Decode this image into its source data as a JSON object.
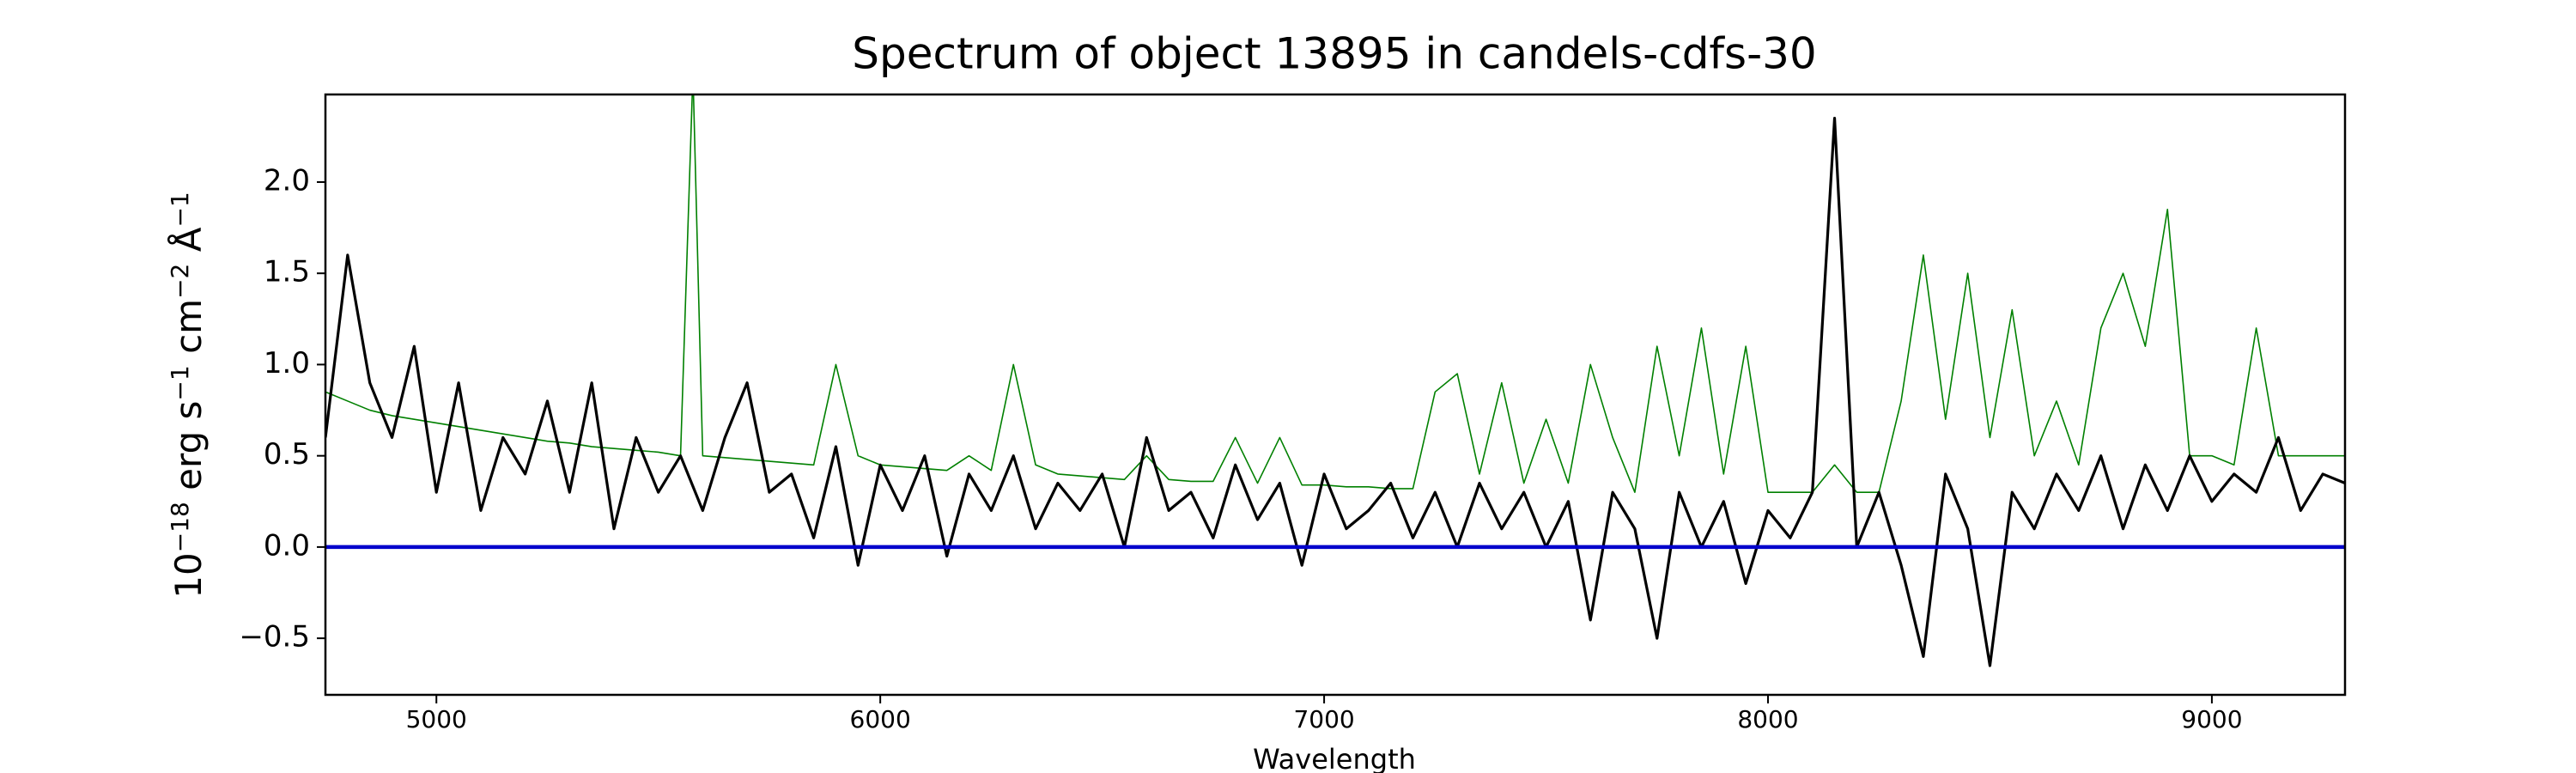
{
  "chart_data": {
    "type": "line",
    "title": "Spectrum of object 13895 in candels-cdfs-30",
    "xlabel": "Wavelength",
    "ylabel_parts": [
      "10",
      "−18",
      " erg s",
      "−1",
      " cm",
      "−2",
      " Å",
      "−1"
    ],
    "xlim": [
      4750,
      9300
    ],
    "ylim": [
      -0.81,
      2.48
    ],
    "xticks": [
      5000,
      6000,
      7000,
      8000,
      9000
    ],
    "yticks": [
      {
        "value": -0.5,
        "label": "−0.5"
      },
      {
        "value": 0,
        "label": "0.0"
      },
      {
        "value": 0.5,
        "label": "0.5"
      },
      {
        "value": 1,
        "label": "1.0"
      },
      {
        "value": 1.5,
        "label": "1.5"
      },
      {
        "value": 2,
        "label": "2.0"
      }
    ],
    "grid": false,
    "series": [
      {
        "color": "#008000",
        "width": 1.6,
        "x": [
          4750,
          4800,
          4850,
          4900,
          4950,
          5000,
          5050,
          5100,
          5150,
          5200,
          5250,
          5300,
          5350,
          5400,
          5450,
          5500,
          5550,
          5578,
          5600,
          5650,
          5700,
          5750,
          5800,
          5850,
          5900,
          5950,
          6000,
          6050,
          6100,
          6150,
          6200,
          6250,
          6300,
          6350,
          6400,
          6450,
          6500,
          6550,
          6600,
          6650,
          6700,
          6750,
          6800,
          6850,
          6900,
          6950,
          7000,
          7050,
          7100,
          7150,
          7200,
          7250,
          7300,
          7350,
          7400,
          7450,
          7500,
          7550,
          7600,
          7650,
          7700,
          7750,
          7800,
          7850,
          7900,
          7950,
          8000,
          8050,
          8100,
          8150,
          8200,
          8250,
          8300,
          8350,
          8400,
          8450,
          8500,
          8550,
          8600,
          8650,
          8700,
          8750,
          8800,
          8850,
          8900,
          8950,
          9000,
          9050,
          9100,
          9150,
          9200,
          9250,
          9300
        ],
        "values": [
          0.85,
          0.8,
          0.75,
          0.72,
          0.7,
          0.68,
          0.66,
          0.64,
          0.62,
          0.6,
          0.58,
          0.57,
          0.55,
          0.54,
          0.53,
          0.52,
          0.5,
          2.6,
          0.5,
          0.49,
          0.48,
          0.47,
          0.46,
          0.45,
          1.0,
          0.5,
          0.45,
          0.44,
          0.43,
          0.42,
          0.5,
          0.42,
          1.0,
          0.45,
          0.4,
          0.39,
          0.38,
          0.37,
          0.5,
          0.37,
          0.36,
          0.36,
          0.6,
          0.35,
          0.6,
          0.34,
          0.34,
          0.33,
          0.33,
          0.32,
          0.32,
          0.85,
          0.95,
          0.4,
          0.9,
          0.35,
          0.7,
          0.35,
          1.0,
          0.6,
          0.3,
          1.1,
          0.5,
          1.2,
          0.4,
          1.1,
          0.3,
          0.3,
          0.3,
          0.45,
          0.3,
          0.3,
          0.8,
          1.6,
          0.7,
          1.5,
          0.6,
          1.3,
          0.5,
          0.8,
          0.45,
          1.2,
          1.5,
          1.1,
          1.85,
          0.5,
          0.5,
          0.45,
          1.2,
          0.5,
          0.5,
          0.5,
          0.5
        ]
      },
      {
        "color": "#000000",
        "width": 3.2,
        "x": [
          4750,
          4800,
          4850,
          4900,
          4950,
          5000,
          5050,
          5100,
          5150,
          5200,
          5250,
          5300,
          5350,
          5400,
          5450,
          5500,
          5550,
          5600,
          5650,
          5700,
          5750,
          5800,
          5850,
          5900,
          5950,
          6000,
          6050,
          6100,
          6150,
          6200,
          6250,
          6300,
          6350,
          6400,
          6450,
          6500,
          6550,
          6600,
          6650,
          6700,
          6750,
          6800,
          6850,
          6900,
          6950,
          7000,
          7050,
          7100,
          7150,
          7200,
          7250,
          7300,
          7350,
          7400,
          7450,
          7500,
          7550,
          7600,
          7650,
          7700,
          7750,
          7800,
          7850,
          7900,
          7950,
          8000,
          8050,
          8100,
          8150,
          8200,
          8250,
          8300,
          8350,
          8400,
          8450,
          8500,
          8550,
          8600,
          8650,
          8700,
          8750,
          8800,
          8850,
          8900,
          8950,
          9000,
          9050,
          9100,
          9150,
          9200,
          9250,
          9300
        ],
        "values": [
          0.6,
          1.6,
          0.9,
          0.6,
          1.1,
          0.3,
          0.9,
          0.2,
          0.6,
          0.4,
          0.8,
          0.3,
          0.9,
          0.1,
          0.6,
          0.3,
          0.5,
          0.2,
          0.6,
          0.9,
          0.3,
          0.4,
          0.05,
          0.55,
          -0.1,
          0.45,
          0.2,
          0.5,
          -0.05,
          0.4,
          0.2,
          0.5,
          0.1,
          0.35,
          0.2,
          0.4,
          0.0,
          0.6,
          0.2,
          0.3,
          0.05,
          0.45,
          0.15,
          0.35,
          -0.1,
          0.4,
          0.1,
          0.2,
          0.35,
          0.05,
          0.3,
          0.0,
          0.35,
          0.1,
          0.3,
          0.0,
          0.25,
          -0.4,
          0.3,
          0.1,
          -0.5,
          0.3,
          0.0,
          0.25,
          -0.2,
          0.2,
          0.05,
          0.3,
          2.35,
          0.0,
          0.3,
          -0.1,
          -0.6,
          0.4,
          0.1,
          -0.65,
          0.3,
          0.1,
          0.4,
          0.2,
          0.5,
          0.1,
          0.45,
          0.2,
          0.5,
          0.25,
          0.4,
          0.3,
          0.6,
          0.2,
          0.4,
          0.35
        ]
      },
      {
        "color": "#0000cc",
        "width": 4.5,
        "x": [
          4750,
          9300
        ],
        "values": [
          0,
          0
        ]
      }
    ]
  }
}
